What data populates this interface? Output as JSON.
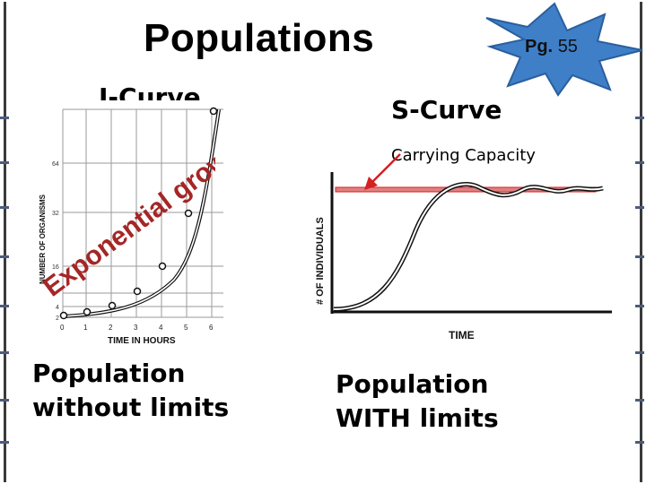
{
  "slide": {
    "title": "Populations",
    "page_ref": {
      "prefix": "Pg.",
      "number": "55"
    },
    "colors": {
      "star_fill": "#3f7fc7",
      "star_stroke": "#2a5f9e",
      "arrow": "#d42020",
      "accent": "#d42020",
      "side_ticks": "#4d5b7c"
    }
  },
  "left": {
    "heading": "J-Curve",
    "overlay_text": "Exponential growth",
    "caption_line1": "Population",
    "caption_line2": "without limits",
    "graph": {
      "ylabel": "NUMBER OF ORGANISMS",
      "xlabel": "TIME IN HOURS",
      "x_ticks": [
        "0",
        "1",
        "2",
        "3",
        "4",
        "5",
        "6"
      ],
      "y_ticks": [
        "2",
        "4",
        "8",
        "16",
        "32",
        "64"
      ]
    }
  },
  "right": {
    "heading": "S-Curve",
    "annotation": "Carrying Capacity",
    "caption_line1": "Population",
    "caption_line2": "WITH limits",
    "graph": {
      "ylabel": "# OF INDIVIDUALS",
      "xlabel": "TIME"
    }
  }
}
